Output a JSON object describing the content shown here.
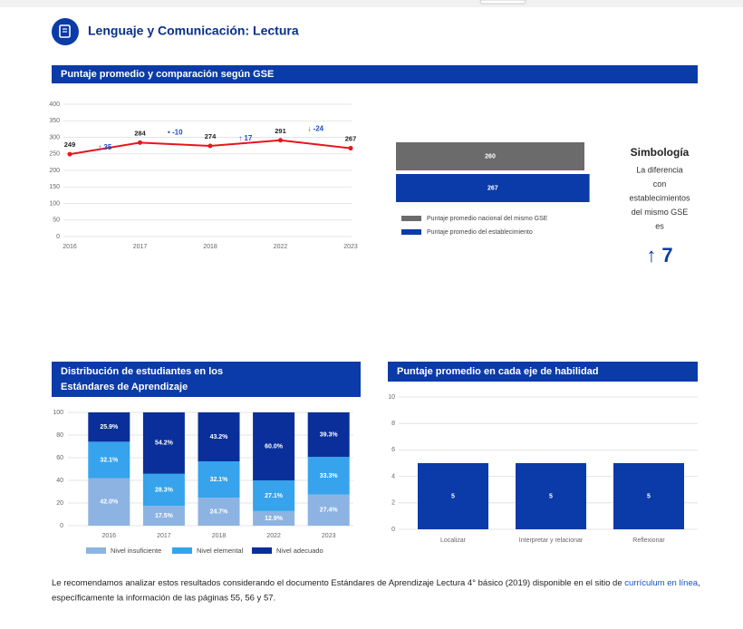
{
  "header": {
    "title": "Lenguaje y Comunicación: Lectura"
  },
  "chart_data": [
    {
      "type": "line",
      "title": "Puntaje promedio y comparación según GSE",
      "categories": [
        "2016",
        "2017",
        "2018",
        "2022",
        "2023"
      ],
      "values": [
        249,
        284,
        274,
        291,
        267
      ],
      "color": "#e8141c",
      "annotations": [
        "↑ 35",
        "• -10",
        "↑ 17",
        "↓ -24"
      ],
      "ylim": [
        0,
        400
      ],
      "yticks": [
        0,
        50,
        100,
        150,
        200,
        250,
        300,
        350,
        400
      ],
      "grid": true
    },
    {
      "type": "hbar",
      "xlim": [
        0,
        300
      ],
      "series": [
        {
          "name": "Puntaje promedio nacional del mismo GSE",
          "color": "#6b6b6b",
          "values": [
            260
          ]
        },
        {
          "name": "Puntaje promedio del establecimiento",
          "color": "#0a3ba8",
          "values": [
            267
          ]
        }
      ]
    },
    {
      "type": "stacked_bar",
      "title_lines": [
        "Distribución de estudiantes en los",
        "Estándares de Aprendizaje"
      ],
      "categories": [
        "2016",
        "2017",
        "2018",
        "2022",
        "2023"
      ],
      "ylim": [
        0,
        100
      ],
      "yticks": [
        0,
        20,
        40,
        60,
        80,
        100
      ],
      "grid": true,
      "series": [
        {
          "name": "Nivel insuficiente",
          "color": "#8db3e2",
          "values": [
            42.0,
            17.5,
            24.7,
            12.9,
            27.4
          ],
          "value_labels": [
            "42.0%",
            "17.5%",
            "24.7%",
            "12.9%",
            "27.4%"
          ]
        },
        {
          "name": "Nivel elemental",
          "color": "#36a3ec",
          "values": [
            32.1,
            28.3,
            32.1,
            27.1,
            33.3
          ],
          "value_labels": [
            "32.1%",
            "28.3%",
            "32.1%",
            "27.1%",
            "33.3%"
          ]
        },
        {
          "name": "Nivel adecuado",
          "color": "#0a2f9a",
          "values": [
            25.9,
            54.2,
            43.2,
            60.0,
            39.3
          ],
          "value_labels": [
            "25.9%",
            "54.2%",
            "43.2%",
            "60.0%",
            "39.3%"
          ]
        }
      ]
    },
    {
      "type": "bar",
      "title": "Puntaje promedio en cada eje de habilidad",
      "categories": [
        "Localizar",
        "Interpretar y relacionar",
        "Reflexionar"
      ],
      "values": [
        5,
        5,
        5
      ],
      "color": "#0a3ba8",
      "ylim": [
        0,
        10
      ],
      "yticks": [
        0,
        2,
        4,
        6,
        8,
        10
      ],
      "grid": true
    }
  ],
  "symbology": {
    "title": "Simbología",
    "lines": [
      "La diferencia",
      "con",
      "establecimientos",
      "del mismo GSE",
      "es"
    ],
    "value": "↑ 7"
  },
  "footer": {
    "text": "Le recomendamos analizar estos resultados considerando el documento Estándares de Aprendizaje Lectura 4° básico (2019) disponible en el sitio de ",
    "link": "currículum en línea",
    "text_end": ",",
    "text_line2": "específicamente la información de las páginas 55, 56 y 57."
  }
}
